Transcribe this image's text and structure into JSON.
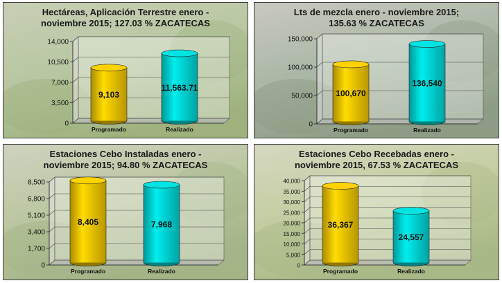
{
  "chart_data": [
    {
      "type": "bar",
      "title": "Hectáreas, Aplicación Terrestre enero -\nnoviembre  2015;  127.03 %  ZACATECAS",
      "categories": [
        "Programado",
        "Realizado"
      ],
      "values": [
        9103,
        11563.71
      ],
      "value_labels": [
        "9,103",
        "11,563.71"
      ],
      "ylim": [
        0,
        14000
      ],
      "yticks": [
        "0",
        "3,500",
        "7,000",
        "10,500",
        "14,000"
      ],
      "colors": [
        "#f5c800",
        "#00d8d8"
      ],
      "gridlines": true,
      "background": "photo-green"
    },
    {
      "type": "bar",
      "title": "Lts de mezcla enero - noviembre 2015;\n135.63 %  ZACATECAS",
      "categories": [
        "Programado",
        "Realizado"
      ],
      "values": [
        100670,
        136540
      ],
      "value_labels": [
        "100,670",
        "136,540"
      ],
      "ylim": [
        0,
        150000
      ],
      "yticks": [
        "0",
        "50,000",
        "100,000",
        "150,000"
      ],
      "colors": [
        "#f5c800",
        "#00d8d8"
      ],
      "gridlines": true,
      "background": "photo-people"
    },
    {
      "type": "bar",
      "title": "Estaciones Cebo Instaladas enero -\nnoviembre 2015;  94.80 %  ZACATECAS",
      "categories": [
        "Programado",
        "Realizado"
      ],
      "values": [
        8405,
        7968
      ],
      "value_labels": [
        "8,405",
        "7,968"
      ],
      "ylim": [
        0,
        8500
      ],
      "yticks": [
        "0",
        "1,700",
        "3,400",
        "5,100",
        "6,800",
        "8,500"
      ],
      "colors": [
        "#f5c800",
        "#00d8d8"
      ],
      "gridlines": true,
      "background": "photo-orchard"
    },
    {
      "type": "bar",
      "title": "Estaciones Cebo Recebadas  enero -\nnoviembre 2015,  67.53 %  ZACATECAS",
      "categories": [
        "Programado",
        "Realizado"
      ],
      "values": [
        36367,
        24557
      ],
      "value_labels": [
        "36,367",
        "24,557"
      ],
      "ylim": [
        0,
        40000
      ],
      "yticks": [
        "0",
        "5,000",
        "10,000",
        "15,000",
        "20,000",
        "25,000",
        "30,000",
        "35,000",
        "40,000"
      ],
      "colors": [
        "#f5c800",
        "#00d8d8"
      ],
      "gridlines": true,
      "background": "photo-leaves"
    }
  ]
}
